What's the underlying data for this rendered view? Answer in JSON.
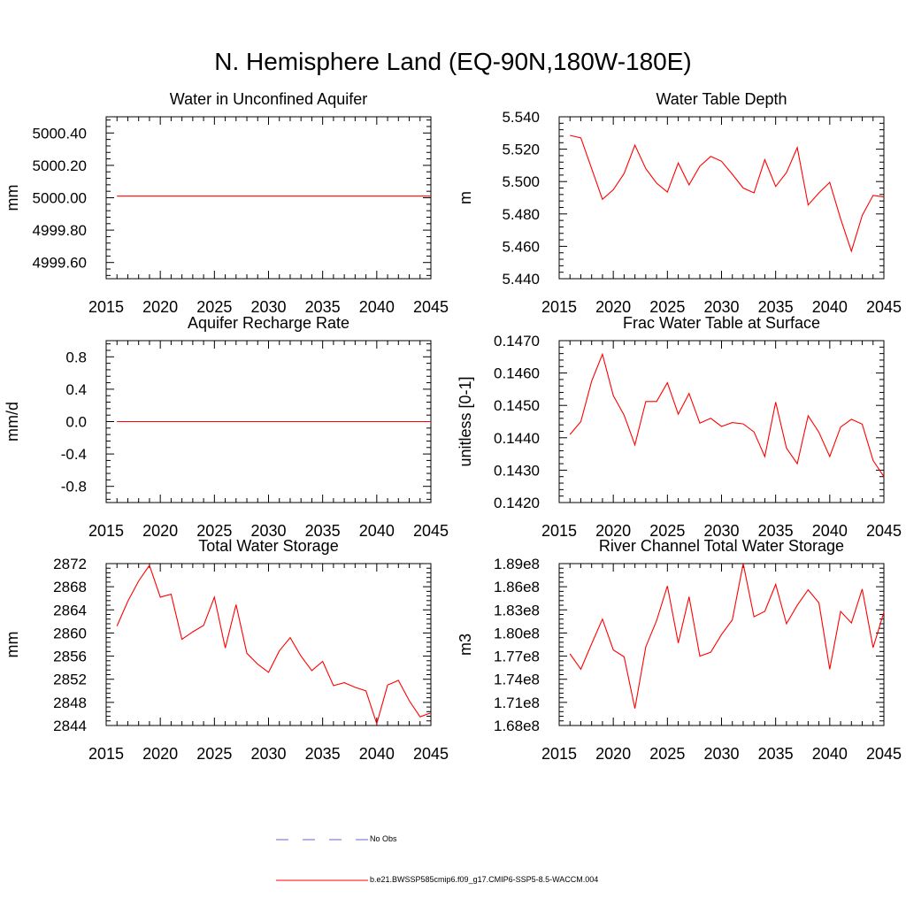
{
  "title": "N. Hemisphere Land (EQ-90N,180W-180E)",
  "legend": {
    "obs_label": "No Obs",
    "model_label": "b.e21.BWSSP585cmip6.f09_g17.CMIP6-SSP5-8.5-WACCM.004",
    "obs_color": "#6666cc",
    "model_color": "#ff0000"
  },
  "chart_data": [
    {
      "type": "line",
      "title": "Water in Unconfined Aquifer",
      "xlabel": "",
      "ylabel": "mm",
      "xlim": [
        2015,
        2045
      ],
      "ylim": [
        4999.5,
        5000.5
      ],
      "xticks": [
        2015,
        2020,
        2025,
        2030,
        2035,
        2040,
        2045
      ],
      "yticks": [
        4999.6,
        4999.8,
        5000.0,
        5000.2,
        5000.4
      ],
      "ytick_labels": [
        "4999.60",
        "4999.80",
        "5000.00",
        "5000.20",
        "5000.40"
      ],
      "series": [
        {
          "name": "b.e21.BWSSP585cmip6.f09_g17.CMIP6-SSP5-8.5-WACCM.004",
          "x": [
            2016,
            2045
          ],
          "values": [
            5000.01,
            5000.01
          ]
        }
      ]
    },
    {
      "type": "line",
      "title": "Water Table Depth",
      "xlabel": "",
      "ylabel": "m",
      "xlim": [
        2015,
        2045
      ],
      "ylim": [
        5.44,
        5.54
      ],
      "xticks": [
        2015,
        2020,
        2025,
        2030,
        2035,
        2040,
        2045
      ],
      "yticks": [
        5.44,
        5.46,
        5.48,
        5.5,
        5.52,
        5.54
      ],
      "ytick_labels": [
        "5.440",
        "5.460",
        "5.480",
        "5.500",
        "5.520",
        "5.540"
      ],
      "series": [
        {
          "name": "b.e21.BWSSP585cmip6.f09_g17.CMIP6-SSP5-8.5-WACCM.004",
          "x": [
            2016,
            2017,
            2018,
            2019,
            2020,
            2021,
            2022,
            2023,
            2024,
            2025,
            2026,
            2027,
            2028,
            2029,
            2030,
            2031,
            2032,
            2033,
            2034,
            2035,
            2036,
            2037,
            2038,
            2039,
            2040,
            2041,
            2042,
            2043,
            2044,
            2045
          ],
          "values": [
            5.5285,
            5.527,
            5.508,
            5.489,
            5.495,
            5.505,
            5.5225,
            5.508,
            5.499,
            5.4935,
            5.5115,
            5.498,
            5.5095,
            5.5155,
            5.5125,
            5.5045,
            5.496,
            5.493,
            5.5135,
            5.497,
            5.5055,
            5.521,
            5.4855,
            5.493,
            5.4995,
            5.477,
            5.457,
            5.479,
            5.4915,
            5.4905
          ]
        }
      ]
    },
    {
      "type": "line",
      "title": "Aquifer Recharge Rate",
      "xlabel": "",
      "ylabel": "mm/d",
      "xlim": [
        2015,
        2045
      ],
      "ylim": [
        -1.0,
        1.0
      ],
      "xticks": [
        2015,
        2020,
        2025,
        2030,
        2035,
        2040,
        2045
      ],
      "yticks": [
        -0.8,
        -0.4,
        0.0,
        0.4,
        0.8
      ],
      "ytick_labels": [
        "-0.8",
        "-0.4",
        "0.0",
        "0.4",
        "0.8"
      ],
      "series": [
        {
          "name": "b.e21.BWSSP585cmip6.f09_g17.CMIP6-SSP5-8.5-WACCM.004",
          "x": [
            2016,
            2045
          ],
          "values": [
            0.0,
            0.0
          ]
        }
      ]
    },
    {
      "type": "line",
      "title": "Frac Water Table at Surface",
      "xlabel": "",
      "ylabel": "unitless [0-1]",
      "xlim": [
        2015,
        2045
      ],
      "ylim": [
        0.142,
        0.147
      ],
      "xticks": [
        2015,
        2020,
        2025,
        2030,
        2035,
        2040,
        2045
      ],
      "yticks": [
        0.142,
        0.143,
        0.144,
        0.145,
        0.146,
        0.147
      ],
      "ytick_labels": [
        "0.1420",
        "0.1430",
        "0.1440",
        "0.1450",
        "0.1460",
        "0.1470"
      ],
      "series": [
        {
          "name": "b.e21.BWSSP585cmip6.f09_g17.CMIP6-SSP5-8.5-WACCM.004",
          "x": [
            2016,
            2017,
            2018,
            2019,
            2020,
            2021,
            2022,
            2023,
            2024,
            2025,
            2026,
            2027,
            2028,
            2029,
            2030,
            2031,
            2032,
            2033,
            2034,
            2035,
            2036,
            2037,
            2038,
            2039,
            2040,
            2041,
            2042,
            2043,
            2044,
            2045
          ],
          "values": [
            0.1441,
            0.1445,
            0.14575,
            0.14658,
            0.1453,
            0.1447,
            0.14378,
            0.14512,
            0.14512,
            0.1457,
            0.14473,
            0.14537,
            0.14445,
            0.1446,
            0.14435,
            0.14447,
            0.14443,
            0.14418,
            0.14342,
            0.1451,
            0.14368,
            0.1432,
            0.14468,
            0.14417,
            0.14342,
            0.14433,
            0.14457,
            0.14442,
            0.1433,
            0.1428
          ]
        }
      ]
    },
    {
      "type": "line",
      "title": "Total Water Storage",
      "xlabel": "",
      "ylabel": "mm",
      "xlim": [
        2015,
        2045
      ],
      "ylim": [
        2844,
        2872
      ],
      "xticks": [
        2015,
        2020,
        2025,
        2030,
        2035,
        2040,
        2045
      ],
      "yticks": [
        2844,
        2848,
        2852,
        2856,
        2860,
        2864,
        2868,
        2872
      ],
      "ytick_labels": [
        "2844",
        "2848",
        "2852",
        "2856",
        "2860",
        "2864",
        "2868",
        "2872"
      ],
      "series": [
        {
          "name": "b.e21.BWSSP585cmip6.f09_g17.CMIP6-SSP5-8.5-WACCM.004",
          "x": [
            2016,
            2017,
            2018,
            2019,
            2020,
            2021,
            2022,
            2023,
            2024,
            2025,
            2026,
            2027,
            2028,
            2029,
            2030,
            2031,
            2032,
            2033,
            2034,
            2035,
            2036,
            2037,
            2038,
            2039,
            2040,
            2041,
            2042,
            2043,
            2044,
            2045
          ],
          "values": [
            2861.2,
            2865.5,
            2869.0,
            2871.7,
            2866.2,
            2866.7,
            2858.9,
            2860.2,
            2861.3,
            2866.2,
            2857.4,
            2864.9,
            2856.5,
            2854.6,
            2853.2,
            2856.9,
            2859.2,
            2856.0,
            2853.5,
            2855.1,
            2850.9,
            2851.4,
            2850.6,
            2850.0,
            2844.3,
            2851.0,
            2851.8,
            2848.3,
            2845.5,
            2846.2
          ]
        }
      ]
    },
    {
      "type": "line",
      "title": "River Channel Total Water Storage",
      "xlabel": "",
      "ylabel": "m3",
      "xlim": [
        2015,
        2045
      ],
      "ylim": [
        168000000.0,
        189000000.0
      ],
      "xticks": [
        2015,
        2020,
        2025,
        2030,
        2035,
        2040,
        2045
      ],
      "yticks": [
        168000000.0,
        171000000.0,
        174000000.0,
        177000000.0,
        180000000.0,
        183000000.0,
        186000000.0,
        189000000.0
      ],
      "ytick_labels": [
        "1.68e8",
        "1.71e8",
        "1.74e8",
        "1.77e8",
        "1.80e8",
        "1.83e8",
        "1.86e8",
        "1.89e8"
      ],
      "series": [
        {
          "name": "b.e21.BWSSP585cmip6.f09_g17.CMIP6-SSP5-8.5-WACCM.004",
          "x": [
            2016,
            2017,
            2018,
            2019,
            2020,
            2021,
            2022,
            2023,
            2024,
            2025,
            2026,
            2027,
            2028,
            2029,
            2030,
            2031,
            2032,
            2033,
            2034,
            2035,
            2036,
            2037,
            2038,
            2039,
            2040,
            2041,
            2042,
            2043,
            2044,
            2045
          ],
          "values": [
            177300000.0,
            175300000.0,
            178600000.0,
            181800000.0,
            177800000.0,
            176900000.0,
            170200000.0,
            178200000.0,
            181600000.0,
            186100000.0,
            178700000.0,
            184700000.0,
            177000000.0,
            177500000.0,
            179800000.0,
            181700000.0,
            189000000.0,
            182100000.0,
            182800000.0,
            186300000.0,
            181200000.0,
            183600000.0,
            185600000.0,
            183900000.0,
            175300000.0,
            182800000.0,
            181300000.0,
            185700000.0,
            178100000.0,
            182700000.0
          ]
        }
      ]
    }
  ]
}
